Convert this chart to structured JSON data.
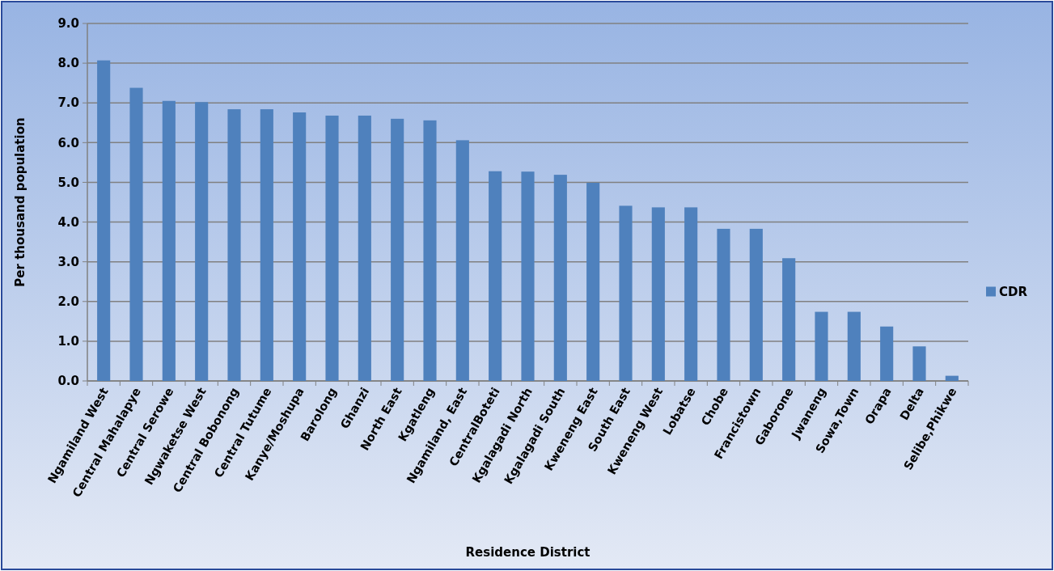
{
  "chart_data": {
    "type": "bar",
    "xlabel": "Residence District",
    "ylabel": "Per thousand population",
    "categories": [
      "Ngamiland West",
      "Central Mahalapye",
      "Central Serowe",
      "Ngwaketse West",
      "Central Bobonong",
      "Central Tutume",
      "Kanye/Moshupa",
      "Barolong",
      "Ghanzi",
      "North East",
      "Kgatleng",
      "Ngamiland, East",
      "CentralBoteti",
      "Kgalagadi North",
      "Kgalagadi South",
      "Kweneng East",
      "South East",
      "Kweneng West",
      "Lobatse",
      "Chobe",
      "Francistown",
      "Gaborone",
      "Jwaneng",
      "Sowa,Town",
      "Orapa",
      "Delta",
      "Selibe,Phikwe"
    ],
    "series": [
      {
        "name": "CDR",
        "color": "#4f81bd",
        "values": [
          8.07,
          7.38,
          7.05,
          7.02,
          6.84,
          6.84,
          6.76,
          6.68,
          6.68,
          6.6,
          6.56,
          6.06,
          5.28,
          5.27,
          5.19,
          4.99,
          4.41,
          4.37,
          4.37,
          3.83,
          3.83,
          3.09,
          1.74,
          1.74,
          1.37,
          0.87,
          0.13
        ]
      }
    ],
    "ylim": [
      0,
      9
    ],
    "yticks": [
      {
        "value": 0,
        "label": "0.0"
      },
      {
        "value": 1,
        "label": "1.0"
      },
      {
        "value": 2,
        "label": "2.0"
      },
      {
        "value": 3,
        "label": "3.0"
      },
      {
        "value": 4,
        "label": "4.0"
      },
      {
        "value": 5,
        "label": "5.0"
      },
      {
        "value": 6,
        "label": "6.0"
      },
      {
        "value": 7,
        "label": "7.0"
      },
      {
        "value": 8,
        "label": "8.0"
      },
      {
        "value": 9,
        "label": "9.0"
      }
    ],
    "grid": "y",
    "legend": "right"
  }
}
